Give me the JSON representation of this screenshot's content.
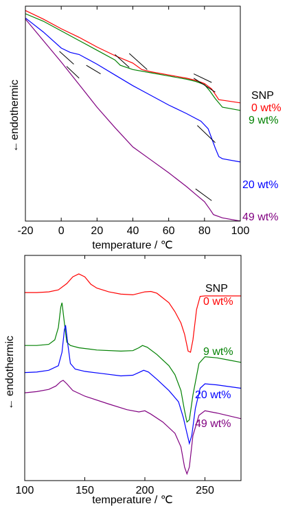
{
  "chart_data": [
    {
      "type": "line",
      "xlabel": "temperature / ℃",
      "ylabel": "endothermic",
      "ylabel_arrow": "←",
      "xlim": [
        -20,
        100
      ],
      "xticks": [
        "-20",
        "0",
        "20",
        "40",
        "60",
        "80",
        "100"
      ],
      "ylim": [
        0,
        1
      ],
      "yticks_shown": false,
      "grid": false,
      "legend_title": "SNP",
      "legend_placement": "right",
      "series": [
        {
          "name": "0 wt%",
          "color": "#ff0000",
          "x": [
            -20,
            -10,
            0,
            10,
            20,
            30,
            40,
            45,
            50,
            60,
            70,
            75,
            80,
            84,
            86,
            88,
            92,
            100
          ],
          "y": [
            0.98,
            0.94,
            0.895,
            0.855,
            0.81,
            0.77,
            0.735,
            0.705,
            0.695,
            0.68,
            0.665,
            0.655,
            0.64,
            0.615,
            0.59,
            0.565,
            0.56,
            0.55
          ]
        },
        {
          "name": "9 wt%",
          "color": "#008000",
          "x": [
            -20,
            -10,
            0,
            10,
            20,
            30,
            33,
            40,
            50,
            60,
            70,
            75,
            80,
            83,
            86,
            90,
            100
          ],
          "y": [
            0.965,
            0.93,
            0.885,
            0.84,
            0.795,
            0.75,
            0.725,
            0.705,
            0.69,
            0.675,
            0.66,
            0.65,
            0.635,
            0.605,
            0.57,
            0.53,
            0.515
          ]
        },
        {
          "name": "20 wt%",
          "color": "#0000ff",
          "x": [
            -20,
            -10,
            0,
            5,
            10,
            20,
            30,
            40,
            50,
            60,
            70,
            78,
            82,
            84,
            86,
            88,
            90,
            100
          ],
          "y": [
            0.945,
            0.88,
            0.805,
            0.785,
            0.775,
            0.73,
            0.68,
            0.63,
            0.585,
            0.54,
            0.5,
            0.465,
            0.43,
            0.385,
            0.34,
            0.3,
            0.29,
            0.275
          ]
        },
        {
          "name": "49 wt%",
          "color": "#800080",
          "x": [
            -20,
            -10,
            0,
            10,
            20,
            30,
            40,
            50,
            60,
            70,
            75,
            80,
            83,
            85,
            90,
            100
          ],
          "y": [
            0.94,
            0.84,
            0.74,
            0.635,
            0.53,
            0.435,
            0.345,
            0.285,
            0.225,
            0.16,
            0.125,
            0.09,
            0.055,
            0.03,
            0.015,
            0.0
          ]
        }
      ],
      "annotations": [
        {
          "type": "tangent",
          "color": "#000000",
          "x": [
            3,
            10
          ],
          "y": [
            0.72,
            0.665
          ]
        },
        {
          "type": "tangent",
          "color": "#000000",
          "x": [
            -1,
            7
          ],
          "y": [
            0.79,
            0.73
          ]
        },
        {
          "type": "tangent",
          "color": "#000000",
          "x": [
            14,
            22
          ],
          "y": [
            0.725,
            0.685
          ]
        },
        {
          "type": "tangent",
          "color": "#000000",
          "x": [
            30,
            38
          ],
          "y": [
            0.775,
            0.715
          ]
        },
        {
          "type": "tangent",
          "color": "#000000",
          "x": [
            38,
            48
          ],
          "y": [
            0.78,
            0.705
          ]
        },
        {
          "type": "tangent",
          "color": "#000000",
          "x": [
            74,
            84
          ],
          "y": [
            0.685,
            0.645
          ]
        },
        {
          "type": "tangent",
          "color": "#000000",
          "x": [
            74,
            86
          ],
          "y": [
            0.665,
            0.6
          ]
        },
        {
          "type": "tangent",
          "color": "#000000",
          "x": [
            76,
            86
          ],
          "y": [
            0.445,
            0.365
          ]
        },
        {
          "type": "tangent",
          "color": "#000000",
          "x": [
            75,
            84
          ],
          "y": [
            0.15,
            0.095
          ]
        }
      ]
    },
    {
      "type": "line",
      "xlabel": "temperature / ℃",
      "ylabel": "endothermic",
      "ylabel_arrow": "←",
      "xlim": [
        100,
        280
      ],
      "xticks": [
        "100",
        "150",
        "200",
        "250"
      ],
      "ylim": [
        0,
        1
      ],
      "yticks_shown": false,
      "grid": false,
      "legend_title": "SNP",
      "legend_placement": "top-right",
      "series": [
        {
          "name": "0 wt%",
          "color": "#ff0000",
          "x": [
            100,
            110,
            120,
            128,
            135,
            140,
            145,
            150,
            155,
            160,
            170,
            180,
            190,
            200,
            205,
            210,
            220,
            225,
            230,
            233,
            236,
            238,
            240,
            243,
            246,
            250,
            260,
            270,
            280
          ],
          "y": [
            0.835,
            0.835,
            0.838,
            0.847,
            0.875,
            0.905,
            0.918,
            0.905,
            0.872,
            0.855,
            0.838,
            0.828,
            0.825,
            0.838,
            0.84,
            0.832,
            0.79,
            0.75,
            0.7,
            0.65,
            0.575,
            0.57,
            0.625,
            0.76,
            0.818,
            0.82,
            0.82,
            0.82,
            0.82
          ]
        },
        {
          "name": "9 wt%",
          "color": "#008000",
          "x": [
            100,
            110,
            120,
            125,
            128,
            130,
            131,
            133,
            135,
            138,
            145,
            160,
            180,
            190,
            195,
            198,
            202,
            210,
            220,
            225,
            230,
            233,
            235,
            237,
            240,
            245,
            250,
            260,
            270,
            280
          ],
          "y": [
            0.6,
            0.6,
            0.605,
            0.625,
            0.68,
            0.77,
            0.79,
            0.7,
            0.615,
            0.6,
            0.59,
            0.58,
            0.575,
            0.577,
            0.59,
            0.6,
            0.592,
            0.56,
            0.51,
            0.47,
            0.4,
            0.31,
            0.26,
            0.27,
            0.38,
            0.52,
            0.55,
            0.545,
            0.535,
            0.525
          ]
        },
        {
          "name": "20 wt%",
          "color": "#0000ff",
          "x": [
            100,
            110,
            120,
            128,
            131,
            133,
            134,
            136,
            138,
            142,
            150,
            165,
            180,
            190,
            195,
            199,
            203,
            210,
            220,
            228,
            232,
            235,
            237,
            239,
            242,
            246,
            250,
            260,
            280
          ],
          "y": [
            0.48,
            0.482,
            0.49,
            0.51,
            0.57,
            0.67,
            0.69,
            0.6,
            0.52,
            0.495,
            0.485,
            0.475,
            0.465,
            0.468,
            0.48,
            0.49,
            0.482,
            0.45,
            0.4,
            0.35,
            0.28,
            0.21,
            0.165,
            0.2,
            0.32,
            0.41,
            0.43,
            0.425,
            0.41
          ]
        },
        {
          "name": "49 wt%",
          "color": "#800080",
          "x": [
            100,
            110,
            120,
            126,
            130,
            132,
            135,
            140,
            150,
            170,
            185,
            195,
            200,
            205,
            215,
            225,
            230,
            233,
            235,
            237,
            240,
            245,
            250,
            260,
            280
          ],
          "y": [
            0.39,
            0.395,
            0.405,
            0.42,
            0.44,
            0.445,
            0.43,
            0.4,
            0.375,
            0.34,
            0.315,
            0.305,
            0.31,
            0.295,
            0.26,
            0.21,
            0.15,
            0.06,
            0.03,
            0.06,
            0.2,
            0.29,
            0.31,
            0.3,
            0.275
          ]
        }
      ]
    }
  ]
}
